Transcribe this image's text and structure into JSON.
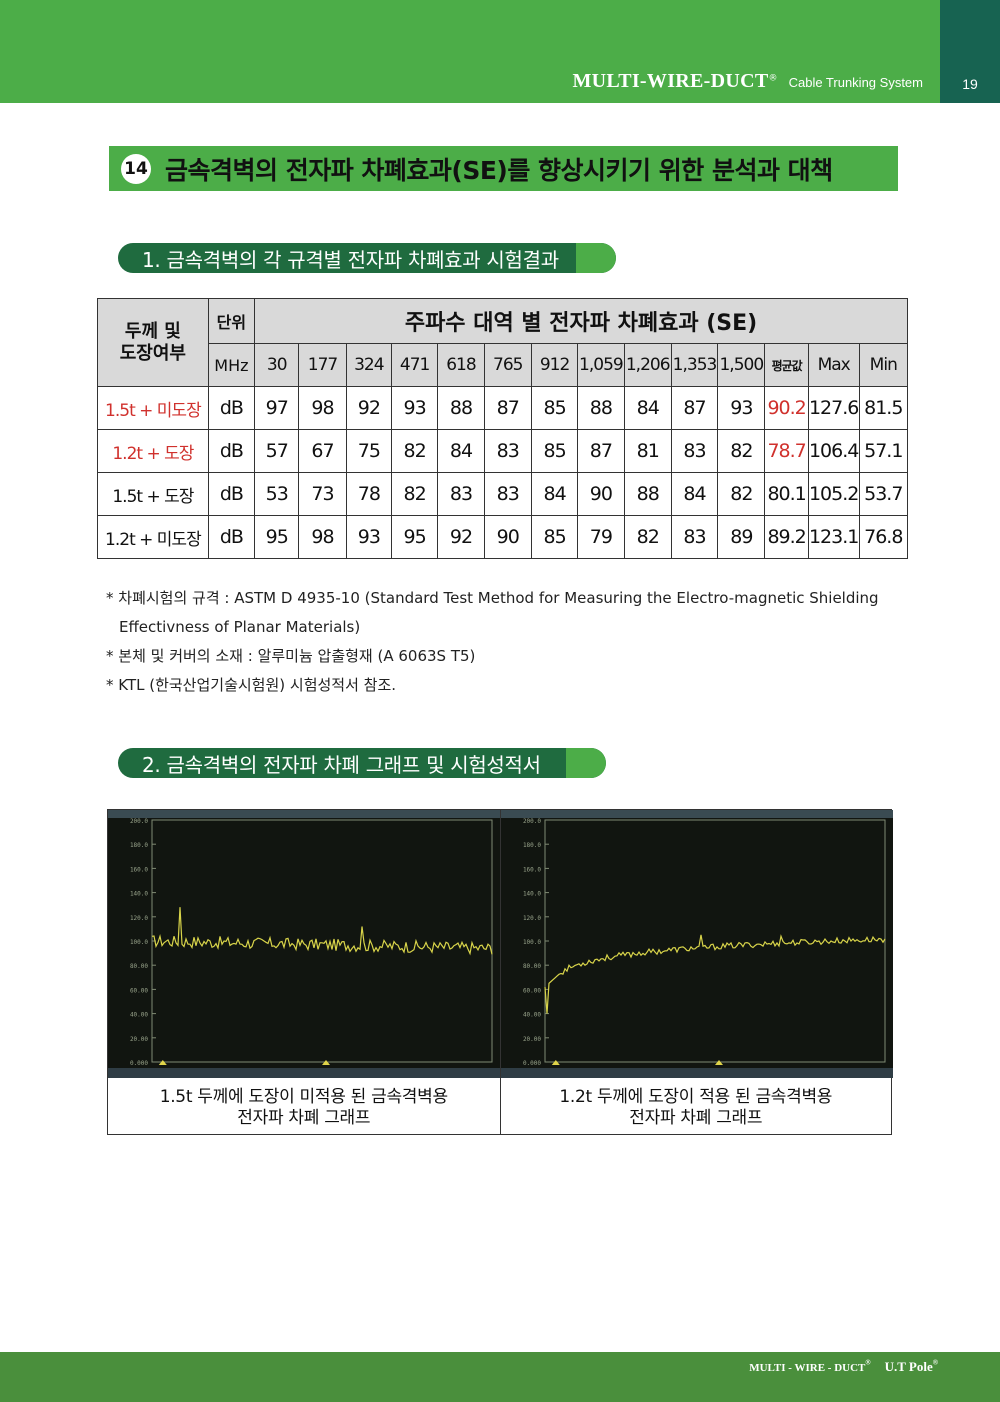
{
  "header": {
    "brand": "MULTI-WIRE-DUCT",
    "reg": "®",
    "subtitle": "Cable Trunking System",
    "page_number": "19",
    "colors": {
      "green": "#4cad48",
      "dark_green": "#176351"
    }
  },
  "title": {
    "number": "14",
    "text": "금속격벽의 전자파 차폐효과(SE)를 향상시키기 위한 분석과 대책"
  },
  "section1": {
    "label": "1. 금속격벽의 각 규격별 전자파 차폐효과 시험결과"
  },
  "table": {
    "corner_label_line1": "두께 및",
    "corner_label_line2": "도장여부",
    "unit_header": "단위",
    "unit_sub": "MHz",
    "group_header": "주파수 대역 별 전자파 차폐효과 (SE)",
    "frequencies": [
      "30",
      "177",
      "324",
      "471",
      "618",
      "765",
      "912",
      "1,059",
      "1,206",
      "1,353",
      "1,500"
    ],
    "avg_label": "평균값",
    "max_label": "Max",
    "min_label": "Min",
    "rows": [
      {
        "label": "1.5t + 미도장",
        "unit": "dB",
        "values": [
          "97",
          "98",
          "92",
          "93",
          "88",
          "87",
          "85",
          "88",
          "84",
          "87",
          "93"
        ],
        "avg": "90.2",
        "max": "127.6",
        "min": "81.5",
        "highlight": true
      },
      {
        "label": "1.2t + 도장",
        "unit": "dB",
        "values": [
          "57",
          "67",
          "75",
          "82",
          "84",
          "83",
          "85",
          "87",
          "81",
          "83",
          "82"
        ],
        "avg": "78.7",
        "max": "106.4",
        "min": "57.1",
        "highlight": true
      },
      {
        "label": "1.5t + 도장",
        "unit": "dB",
        "values": [
          "53",
          "73",
          "78",
          "82",
          "83",
          "83",
          "84",
          "90",
          "88",
          "84",
          "82"
        ],
        "avg": "80.1",
        "max": "105.2",
        "min": "53.7",
        "highlight": false
      },
      {
        "label": "1.2t + 미도장",
        "unit": "dB",
        "values": [
          "95",
          "98",
          "93",
          "95",
          "92",
          "90",
          "85",
          "79",
          "82",
          "83",
          "89"
        ],
        "avg": "89.2",
        "max": "123.1",
        "min": "76.8",
        "highlight": false
      }
    ]
  },
  "notes": {
    "n1a": "* 차폐시험의 규격 : ASTM D 4935-10 (Standard Test Method for Measuring the Electro-magnetic Shielding",
    "n1b": "Effectivness of Planar Materials)",
    "n2": "* 본체 및 커버의 소재 : 알루미늄 압출형재 (A 6063S T5)",
    "n3": "* KTL (한국산업기술시험원) 시험성적서 참조."
  },
  "section2": {
    "label": "2. 금속격벽의 전자파 차폐 그래프 및 시험성적서"
  },
  "graphs": [
    {
      "caption_line1": "1.5t 두께에 도장이 미적용 된 금속격벽용",
      "caption_line2": "전자파 차폐 그래프",
      "y_ticks": [
        "200.0",
        "180.0",
        "160.0",
        "140.0",
        "120.0",
        "100.0",
        "80.00",
        "60.00",
        "40.00",
        "20.00",
        "0.000"
      ],
      "trace_color": "#d8d44a"
    },
    {
      "caption_line1": "1.2t 두께에 도장이 적용 된 금속격벽용",
      "caption_line2": "전자파 차폐 그래프",
      "y_ticks": [
        "200.0",
        "180.0",
        "160.0",
        "140.0",
        "120.0",
        "100.0",
        "80.00",
        "60.00",
        "40.00",
        "20.00",
        "0.000"
      ],
      "trace_color": "#d8d44a"
    }
  ],
  "footer": {
    "brand": "MULTI - WIRE - DUCT",
    "reg": "®",
    "pole": "U.T Pole",
    "pole_reg": "®"
  }
}
